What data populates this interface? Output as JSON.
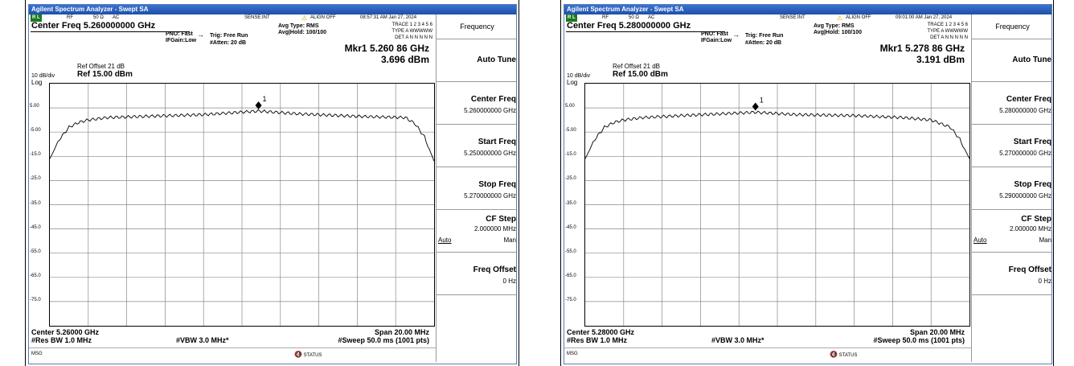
{
  "windows": [
    {
      "title": "Agilent Spectrum Analyzer - Swept SA",
      "status": {
        "rl": "R L",
        "rf": "RF",
        "ohm": "50 Ω",
        "ac": "AC",
        "sense": "SENSE:INT",
        "align": "ALIGN OFF",
        "time": "08:57:31 AM Jan 27, 2024"
      },
      "center_freq": "Center Freq 5.260000000 GHz",
      "pno": "PNO: Fast",
      "ifgain": "IFGain:Low",
      "trig": "Trig: Free Run",
      "atten": "#Atten: 20 dB",
      "avg_type": "Avg Type: RMS",
      "avg_hold": "Avg|Hold: 100/100",
      "trace_row1": "TRACE 1 2 3 4 5 6",
      "trace_row2": "TYPE A WWWWW",
      "trace_row3": "DET A N N N N N",
      "marker_freq": "Mkr1 5.260 86 GHz",
      "marker_level": "3.696 dBm",
      "ref_offset": "Ref Offset 21 dB",
      "ref_level": "Ref 15.00 dBm",
      "db_div": "10 dB/div",
      "log": "Log",
      "yticks": [
        "5.00",
        "-5.00",
        "-15.0",
        "-25.0",
        "-35.0",
        "-45.0",
        "-55.0",
        "-65.0",
        "-75.0"
      ],
      "center_label": "Center 5.26000 GHz",
      "span_label": "Span 20.00 MHz",
      "res_bw": "#Res BW 1.0 MHz",
      "vbw": "#VBW 3.0 MHz*",
      "sweep": "#Sweep  50.0 ms (1001 pts)",
      "msg": "MSG",
      "status_text": "STATUS",
      "marker_id": "1",
      "marker_pos": 0.5,
      "softkeys": {
        "title": "Frequency",
        "auto_tune": "Auto Tune",
        "center_freq": "Center Freq",
        "center_freq_val": "5.260000000 GHz",
        "start_freq": "Start Freq",
        "start_freq_val": "5.250000000 GHz",
        "stop_freq": "Stop Freq",
        "stop_freq_val": "5.270000000 GHz",
        "cf_step": "CF Step",
        "cf_step_val": "2.000000 MHz",
        "auto": "Auto",
        "man": "Man",
        "freq_offset": "Freq Offset",
        "freq_offset_val": "0 Hz"
      }
    },
    {
      "title": "Agilent Spectrum Analyzer - Swept SA",
      "status": {
        "rl": "R L",
        "rf": "RF",
        "ohm": "50 Ω",
        "ac": "AC",
        "sense": "SENSE:INT",
        "align": "ALIGN OFF",
        "time": "09:01:00 AM Jan 27, 2024"
      },
      "center_freq": "Center Freq 5.280000000 GHz",
      "pno": "PNO: Fast",
      "ifgain": "IFGain:Low",
      "trig": "Trig: Free Run",
      "atten": "#Atten: 20 dB",
      "avg_type": "Avg Type: RMS",
      "avg_hold": "Avg|Hold: 100/100",
      "trace_row1": "TRACE 1 2 3 4 5 6",
      "trace_row2": "TYPE A WWWWW",
      "trace_row3": "DET A N N N N N",
      "marker_freq": "Mkr1 5.278 86 GHz",
      "marker_level": "3.191 dBm",
      "ref_offset": "Ref Offset 21 dB",
      "ref_level": "Ref 15.00 dBm",
      "db_div": "10 dB/div",
      "log": "Log",
      "yticks": [
        "5.00",
        "-5.00",
        "-15.0",
        "-25.0",
        "-35.0",
        "-45.0",
        "-55.0",
        "-65.0",
        "-75.0"
      ],
      "center_label": "Center 5.28000 GHz",
      "span_label": "Span 20.00 MHz",
      "res_bw": "#Res BW 1.0 MHz",
      "vbw": "#VBW 3.0 MHz*",
      "sweep": "#Sweep  50.0 ms (1001 pts)",
      "msg": "MSG",
      "status_text": "STATUS",
      "marker_id": "1",
      "marker_pos": 0.44,
      "softkeys": {
        "title": "Frequency",
        "auto_tune": "Auto Tune",
        "center_freq": "Center Freq",
        "center_freq_val": "5.280000000 GHz",
        "start_freq": "Start Freq",
        "start_freq_val": "5.270000000 GHz",
        "stop_freq": "Stop Freq",
        "stop_freq_val": "5.290000000 GHz",
        "cf_step": "CF Step",
        "cf_step_val": "2.000000 MHz",
        "auto": "Auto",
        "man": "Man",
        "freq_offset": "Freq Offset",
        "freq_offset_val": "0 Hz"
      }
    }
  ],
  "chart_data": [
    {
      "type": "line",
      "xlabel": "",
      "ylabel": "",
      "x_range_ghz": [
        5.25,
        5.27
      ],
      "ylim": [
        -85,
        15
      ],
      "grid": true,
      "series": [
        {
          "x": [
            5.25,
            5.2505,
            5.251,
            5.2515,
            5.252,
            5.253,
            5.255,
            5.258,
            5.26086,
            5.263,
            5.266,
            5.2685,
            5.269,
            5.2695,
            5.27
          ],
          "values": [
            -16.0,
            -8.0,
            -3.0,
            -1.0,
            0.0,
            1.0,
            1.5,
            2.2,
            3.696,
            2.5,
            1.5,
            1.0,
            -1.5,
            -7.0,
            -17.0
          ]
        }
      ],
      "markers": [
        {
          "label": "1",
          "x": 5.26086,
          "y": 3.696
        }
      ]
    },
    {
      "type": "line",
      "xlabel": "",
      "ylabel": "",
      "x_range_ghz": [
        5.27,
        5.29
      ],
      "ylim": [
        -85,
        15
      ],
      "grid": true,
      "series": [
        {
          "x": [
            5.27,
            5.2705,
            5.271,
            5.2715,
            5.272,
            5.273,
            5.275,
            5.27886,
            5.281,
            5.284,
            5.2865,
            5.288,
            5.289,
            5.2895,
            5.29
          ],
          "values": [
            -16.0,
            -8.0,
            -3.0,
            -1.0,
            0.0,
            1.0,
            1.8,
            3.191,
            2.2,
            1.8,
            1.0,
            0.0,
            -3.0,
            -8.0,
            -16.0
          ]
        }
      ],
      "markers": [
        {
          "label": "1",
          "x": 5.27886,
          "y": 3.191
        }
      ]
    }
  ]
}
